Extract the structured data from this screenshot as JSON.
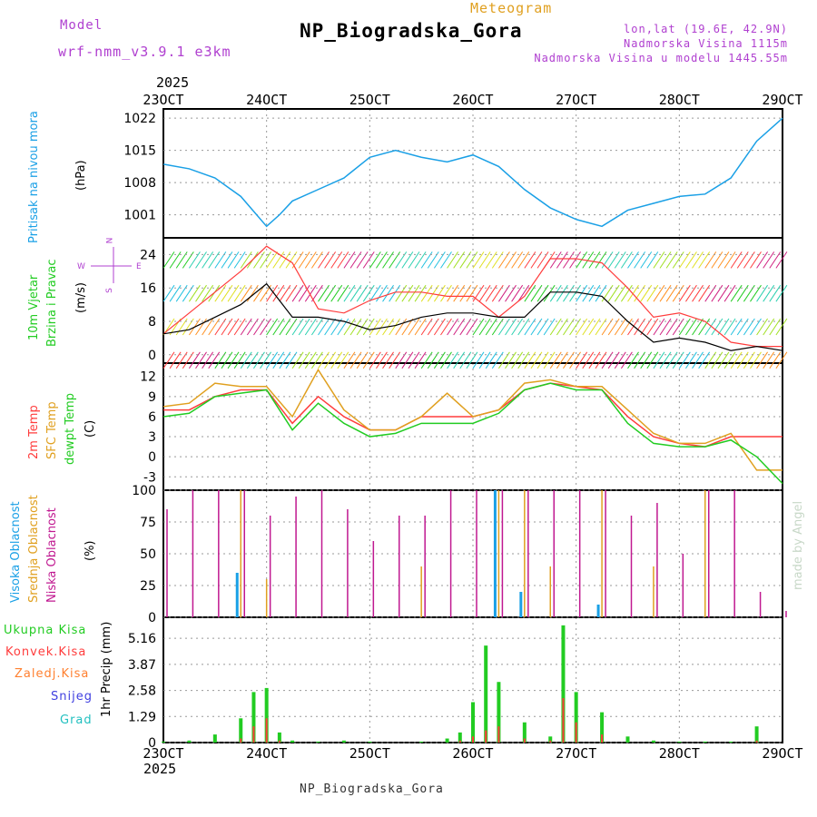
{
  "header": {
    "model_label": "Model",
    "model_value": "wrf-nmm_v3.9.1 e3km",
    "title": "Meteogram",
    "station": "NP_Biogradska_Gora",
    "lonlat": "lon,lat (19.6E, 42.9N)",
    "altitude": "Nadmorska Visina 1115m",
    "model_altitude": "Nadmorska Visina u modelu 1445.55m",
    "footer_station": "NP_Biogradska_Gora",
    "credit": "made by Angel",
    "year_top": "2025",
    "year_bottom": "2025"
  },
  "colors": {
    "pressure": "#1aa0e6",
    "wind_speed": "#000000",
    "gust": "#ff3c3c",
    "temp_2m": "#ff3c3c",
    "temp_sfc": "#e0a020",
    "temp_dew": "#22cc22",
    "cloud_high": "#1aa0e6",
    "cloud_mid": "#e0a020",
    "cloud_low": "#c01890",
    "precip_total": "#22cc22",
    "precip_conv": "#ff3c3c",
    "label_purple": "#b040d0"
  },
  "axis_days": [
    "23OCT",
    "24OCT",
    "25OCT",
    "26OCT",
    "27OCT",
    "28OCT",
    "29OCT"
  ],
  "chart_data": [
    {
      "type": "line",
      "panel": "pressure",
      "title": "Pritisak na nivou mora",
      "ylabel": "(hPa)",
      "yticks": [
        "1022",
        "1015",
        "1008",
        "1001"
      ],
      "ylim": [
        996,
        1024
      ],
      "x": [
        0,
        6,
        12,
        18,
        24,
        27,
        30,
        36,
        42,
        48,
        54,
        60,
        66,
        72,
        78,
        84,
        90,
        96,
        102,
        108,
        114,
        120,
        126,
        132,
        138,
        144
      ],
      "series": [
        {
          "name": "MSLP",
          "values": [
            1012,
            1011,
            1009,
            1005,
            998.5,
            1001,
            1004,
            1006.5,
            1009,
            1013.5,
            1015,
            1013.5,
            1012.5,
            1014,
            1011.5,
            1006.5,
            1002.5,
            1000,
            998.5,
            1002,
            1003.5,
            1005,
            1005.5,
            1009,
            1017,
            1022
          ]
        }
      ]
    },
    {
      "type": "line",
      "panel": "wind",
      "title": "10m Vjetar",
      "subtitle": "Brzina i Pravac",
      "ylabel": "(m/s)",
      "yticks": [
        "24",
        "16",
        "8",
        "0"
      ],
      "ylim": [
        -2,
        28
      ],
      "compass": {
        "n": "N",
        "s": "S",
        "e": "E",
        "w": "W"
      },
      "x": [
        0,
        6,
        12,
        18,
        24,
        30,
        36,
        42,
        48,
        54,
        60,
        66,
        72,
        78,
        84,
        90,
        96,
        102,
        108,
        114,
        120,
        126,
        132,
        138,
        144
      ],
      "series": [
        {
          "name": "wind_speed",
          "values": [
            5,
            6,
            9,
            12,
            17,
            9,
            9,
            8,
            6,
            7,
            9,
            10,
            10,
            9,
            9,
            15,
            15,
            14,
            8,
            3,
            4,
            3,
            1,
            2,
            1
          ]
        },
        {
          "name": "gust",
          "values": [
            5,
            10,
            15,
            20,
            26,
            22,
            11,
            10,
            13,
            15,
            15,
            14,
            14,
            9,
            14,
            23,
            23,
            22,
            16,
            9,
            10,
            8,
            3,
            2,
            2
          ]
        }
      ]
    },
    {
      "type": "line",
      "panel": "temperature",
      "titles": [
        "2m Temp",
        "SFC Temp",
        "dewpt Temp"
      ],
      "ylabel": "(C)",
      "yticks": [
        "12",
        "9",
        "6",
        "3",
        "0",
        "-3"
      ],
      "ylim": [
        -5,
        14
      ],
      "x": [
        0,
        6,
        12,
        18,
        24,
        30,
        36,
        42,
        48,
        54,
        60,
        66,
        72,
        78,
        84,
        90,
        96,
        102,
        108,
        114,
        120,
        126,
        132,
        138,
        144
      ],
      "series": [
        {
          "name": "2m Temp",
          "values": [
            7,
            7,
            9,
            10,
            10,
            5,
            9,
            6,
            4,
            4,
            6,
            6,
            6,
            7,
            10,
            11,
            10.5,
            10,
            6,
            3,
            2,
            1.5,
            3,
            3,
            3
          ]
        },
        {
          "name": "SFC Temp",
          "values": [
            7.5,
            8,
            11,
            10.5,
            10.5,
            6,
            13,
            7,
            4,
            4,
            6,
            9.5,
            6,
            7,
            11,
            11.5,
            10.5,
            10.5,
            7,
            3.5,
            2,
            2,
            3.5,
            -2,
            -2
          ]
        },
        {
          "name": "dewpt Temp",
          "values": [
            6,
            6.5,
            9,
            9.5,
            10,
            4,
            8,
            5,
            3,
            3.5,
            5,
            5,
            5,
            6.5,
            10,
            11,
            10,
            10,
            5,
            2,
            1.5,
            1.5,
            2.5,
            0,
            -4
          ]
        }
      ]
    },
    {
      "type": "bar",
      "panel": "clouds",
      "titles": [
        "Visoka Oblacnost",
        "Srednja Oblacnost",
        "Niska Oblacnost"
      ],
      "ylabel": "(%)",
      "yticks": [
        "100",
        "75",
        "50",
        "25",
        "0"
      ],
      "ylim": [
        0,
        100
      ],
      "x": [
        0,
        6,
        12,
        18,
        24,
        30,
        36,
        42,
        48,
        54,
        60,
        66,
        72,
        78,
        84,
        90,
        96,
        102,
        108,
        114,
        120,
        126,
        132,
        138,
        144
      ],
      "series": [
        {
          "name": "high",
          "values": [
            0,
            0,
            0,
            35,
            0,
            0,
            0,
            0,
            0,
            0,
            0,
            0,
            0,
            100,
            20,
            0,
            0,
            10,
            0,
            0,
            0,
            0,
            0,
            0,
            0
          ]
        },
        {
          "name": "mid",
          "values": [
            0,
            0,
            0,
            100,
            30,
            0,
            0,
            0,
            0,
            0,
            40,
            0,
            0,
            100,
            100,
            40,
            0,
            100,
            0,
            40,
            0,
            100,
            0,
            0,
            0
          ]
        },
        {
          "name": "low",
          "values": [
            85,
            100,
            100,
            100,
            80,
            95,
            100,
            85,
            60,
            80,
            80,
            100,
            100,
            100,
            100,
            100,
            100,
            100,
            80,
            90,
            50,
            100,
            100,
            20,
            5
          ]
        }
      ]
    },
    {
      "type": "bar",
      "panel": "precipitation",
      "titles": [
        "Ukupna Kisa",
        "Konvek.Kisa",
        "Zaledj.Kisa",
        "Snijeg",
        "Grad"
      ],
      "ylabel": "1hr Precip (mm)",
      "yticks": [
        "5.16",
        "3.87",
        "2.58",
        "1.29",
        "0"
      ],
      "ylim": [
        0,
        6.2
      ],
      "x": [
        0,
        6,
        12,
        18,
        21,
        24,
        27,
        30,
        36,
        42,
        48,
        54,
        60,
        66,
        69,
        72,
        75,
        78,
        84,
        90,
        93,
        96,
        102,
        108,
        114,
        120,
        126,
        132,
        138,
        144
      ],
      "series": [
        {
          "name": "Ukupna Kisa",
          "values": [
            0.05,
            0.1,
            0.4,
            1.2,
            2.5,
            2.7,
            0.5,
            0.1,
            0.05,
            0.1,
            0.05,
            0,
            0.05,
            0.2,
            0.5,
            2.0,
            4.8,
            3.0,
            1.0,
            0.3,
            5.8,
            2.5,
            1.5,
            0.3,
            0.1,
            0.05,
            0.05,
            0.05,
            0.8,
            0
          ]
        },
        {
          "name": "Konvek.Kisa",
          "values": [
            0,
            0,
            0,
            0.2,
            0.8,
            1.2,
            0.1,
            0,
            0,
            0,
            0,
            0,
            0,
            0,
            0.1,
            0.3,
            0.6,
            0.8,
            0.2,
            0.1,
            2.2,
            1.0,
            0.4,
            0,
            0,
            0,
            0,
            0,
            0.1,
            0
          ]
        }
      ]
    }
  ]
}
